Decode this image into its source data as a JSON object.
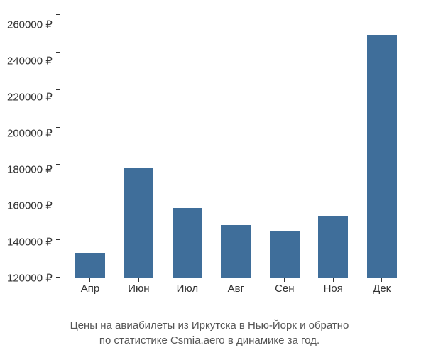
{
  "chart": {
    "type": "bar",
    "categories": [
      "Апр",
      "Июн",
      "Июл",
      "Авг",
      "Сен",
      "Ноя",
      "Дек"
    ],
    "values": [
      133000,
      178000,
      157000,
      148000,
      145000,
      153000,
      249000
    ],
    "bar_color": "#3f6e9a",
    "axis_color": "#333333",
    "label_color": "#333333",
    "caption_color": "#555555",
    "background_color": "#ffffff",
    "ylim": [
      120000,
      260000
    ],
    "ytick_step": 20000,
    "yticks": [
      260000,
      240000,
      220000,
      200000,
      180000,
      160000,
      140000,
      120000
    ],
    "ytick_labels": [
      "260000 ₽",
      "240000 ₽",
      "220000 ₽",
      "200000 ₽",
      "180000 ₽",
      "160000 ₽",
      "140000 ₽",
      "120000 ₽"
    ],
    "currency": "₽",
    "label_fontsize": 15,
    "caption_fontsize": 15,
    "bar_width": 0.7,
    "grid": false
  },
  "caption": {
    "line1": "Цены на авиабилеты из Иркутска в Нью-Йорк и обратно",
    "line2": "по статистике Csmia.aero в динамике за год."
  }
}
